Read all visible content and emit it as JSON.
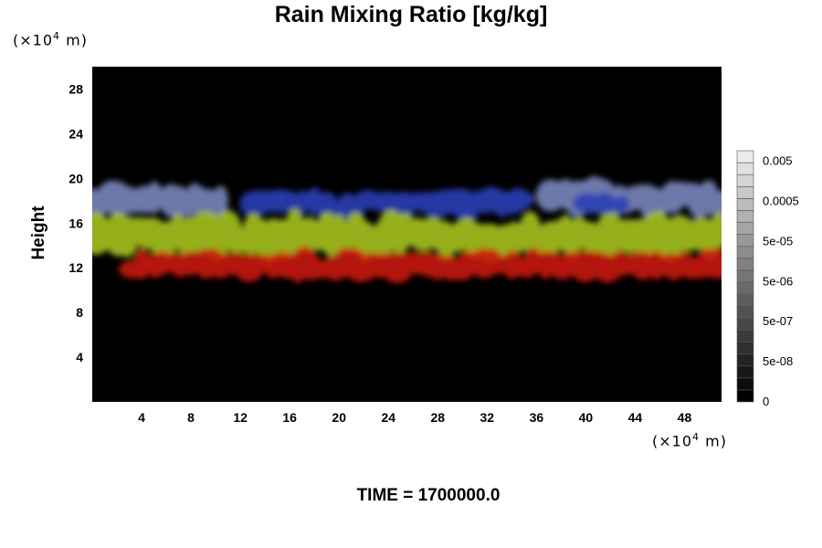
{
  "chart_data": {
    "type": "heatmap",
    "title": "Rain Mixing Ratio [kg/kg]",
    "ylabel": "Height",
    "x_unit_label": {
      "prefix": "(×10",
      "exp": "4",
      "suffix": " m)"
    },
    "y_unit_label": {
      "prefix": "(×10",
      "exp": "4",
      "suffix": " m)"
    },
    "footer": "TIME = 1700000.0",
    "xlim": [
      0,
      51
    ],
    "ylim": [
      0,
      30
    ],
    "x_ticks": [
      "4",
      "8",
      "12",
      "16",
      "20",
      "24",
      "28",
      "32",
      "36",
      "40",
      "44",
      "48"
    ],
    "y_ticks": [
      "4",
      "8",
      "12",
      "16",
      "20",
      "24",
      "28"
    ],
    "colorbar_labels": [
      "0",
      "5e-08",
      "5e-07",
      "5e-06",
      "5e-05",
      "0.0005",
      "0.005"
    ],
    "grid": false,
    "layers": [
      {
        "name": "",
        "color": "#7f8fc8",
        "y_range": [
          16.5,
          19.8
        ],
        "x_extents": [
          [
            0,
            10
          ],
          [
            37,
            51
          ]
        ]
      },
      {
        "name": "",
        "color": "#2a3fb5",
        "y_range": [
          16.5,
          19.0
        ],
        "x_extents": [
          [
            13,
            35
          ],
          [
            40,
            43
          ]
        ]
      },
      {
        "name": "",
        "color": "#a6c21e",
        "y_range": [
          12.8,
          16.8
        ],
        "x_extents": [
          [
            0,
            51
          ]
        ]
      },
      {
        "name": "",
        "color": "#c8160f",
        "y_range": [
          10.8,
          13.6
        ],
        "x_extents": [
          [
            3,
            51
          ]
        ]
      }
    ]
  }
}
